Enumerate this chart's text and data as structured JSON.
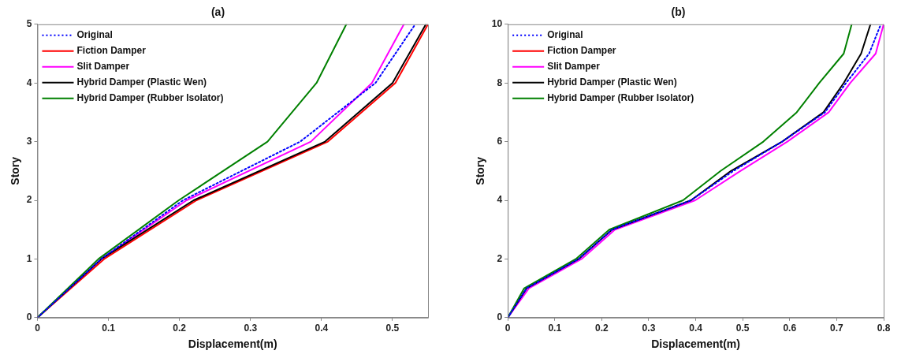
{
  "chart_data": [
    {
      "type": "line",
      "title": "(a)",
      "xlabel": "Displacement(m)",
      "ylabel": "Story",
      "xlim": [
        0,
        0.55
      ],
      "xticks": [
        0,
        0.1,
        0.2,
        0.3,
        0.4,
        0.5
      ],
      "ylim": [
        0,
        5
      ],
      "yticks": [
        0,
        1,
        2,
        3,
        4,
        5
      ],
      "grid": false,
      "legend": "top left",
      "marker": "none",
      "series": [
        {
          "name": "Original",
          "color": "#0000ff",
          "line_style": "dotted",
          "x": [
            0,
            0.09,
            0.205,
            0.37,
            0.476,
            0.532
          ],
          "values": [
            0,
            1,
            2,
            3,
            4,
            5
          ]
        },
        {
          "name": "Fiction Damper",
          "color": "#ff0000",
          "line_style": "solid",
          "x": [
            0,
            0.094,
            0.224,
            0.409,
            0.504,
            0.55
          ],
          "values": [
            0,
            1,
            2,
            3,
            4,
            5
          ]
        },
        {
          "name": "Slit Damper",
          "color": "#ff00ff",
          "line_style": "solid",
          "x": [
            0,
            0.09,
            0.21,
            0.385,
            0.471,
            0.516
          ],
          "values": [
            0,
            1,
            2,
            3,
            4,
            5
          ]
        },
        {
          "name": "Hybrid Damper (Plastic Wen)",
          "color": "#000000",
          "line_style": "solid",
          "x": [
            0,
            0.09,
            0.22,
            0.405,
            0.5,
            0.547
          ],
          "values": [
            0,
            1,
            2,
            3,
            4,
            5
          ]
        },
        {
          "name": "Hybrid Damper (Rubber Isolator)",
          "color": "#008000",
          "line_style": "solid",
          "x": [
            0,
            0.086,
            0.199,
            0.324,
            0.393,
            0.435
          ],
          "values": [
            0,
            1,
            2,
            3,
            4,
            5
          ]
        }
      ]
    },
    {
      "type": "line",
      "title": "(b)",
      "xlabel": "Displacement(m)",
      "ylabel": "Story",
      "xlim": [
        0,
        0.8
      ],
      "xticks": [
        0,
        0.1,
        0.2,
        0.3,
        0.4,
        0.5,
        0.6,
        0.7,
        0.8
      ],
      "ylim": [
        0,
        10
      ],
      "yticks": [
        0,
        2,
        4,
        6,
        8,
        10
      ],
      "grid": false,
      "legend": "top left",
      "marker": "none",
      "series": [
        {
          "name": "Original",
          "color": "#0000ff",
          "line_style": "dotted",
          "x": [
            0,
            0.04,
            0.151,
            0.222,
            0.39,
            0.48,
            0.584,
            0.675,
            0.72,
            0.769,
            0.794
          ],
          "values": [
            0,
            1,
            2,
            3,
            4,
            5,
            6,
            7,
            8,
            9,
            10
          ]
        },
        {
          "name": "Fiction Damper",
          "color": "#ff0000",
          "line_style": "solid",
          "x": [
            null,
            null,
            null,
            null,
            null,
            null,
            null,
            null,
            null,
            null,
            null
          ],
          "values": [
            null,
            null,
            null,
            null,
            null,
            null,
            null,
            null,
            null,
            null,
            null
          ]
        },
        {
          "name": "Slit Damper",
          "color": "#ff00ff",
          "line_style": "solid",
          "x": [
            0,
            0.045,
            0.157,
            0.228,
            0.399,
            0.495,
            0.595,
            0.683,
            0.729,
            0.783,
            0.8
          ],
          "values": [
            0,
            1,
            2,
            3,
            4,
            5,
            6,
            7,
            8,
            9,
            10
          ]
        },
        {
          "name": "Hybrid Damper (Plastic Wen)",
          "color": "#000000",
          "line_style": "solid",
          "x": [
            0,
            0.04,
            0.151,
            0.222,
            0.39,
            0.475,
            0.584,
            0.672,
            0.715,
            0.752,
            0.772
          ],
          "values": [
            0,
            1,
            2,
            3,
            4,
            5,
            6,
            7,
            8,
            9,
            10
          ]
        },
        {
          "name": "Hybrid Damper (Rubber Isolator)",
          "color": "#008000",
          "line_style": "solid",
          "x": [
            0,
            0.035,
            0.145,
            0.216,
            0.373,
            0.453,
            0.544,
            0.615,
            0.663,
            0.715,
            0.732
          ],
          "values": [
            0,
            1,
            2,
            3,
            4,
            5,
            6,
            7,
            8,
            9,
            10
          ]
        }
      ]
    }
  ]
}
